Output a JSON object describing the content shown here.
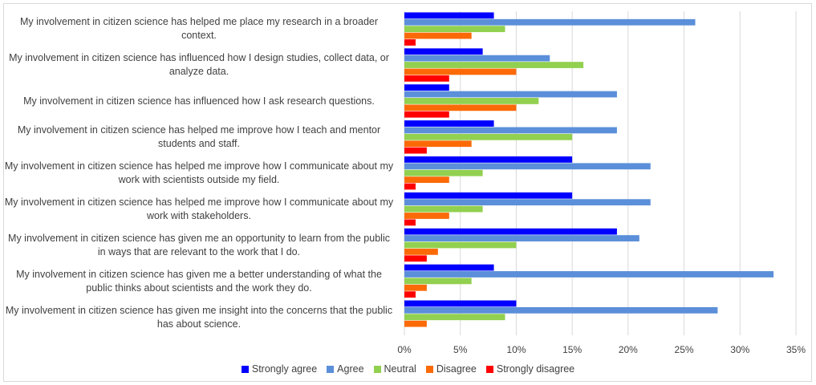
{
  "chart_data": {
    "type": "bar",
    "orientation": "horizontal",
    "categories": [
      "My involvement in citizen science has helped me place my research in a broader context.",
      "My involvement in citizen science has influenced how I design studies, collect data, or analyze data.",
      "My involvement in citizen science has influenced how I ask research questions.",
      "My involvement in citizen science has helped me improve how I teach and mentor students and staff.",
      "My involvement in citizen science has helped me improve how I communicate about my work with scientists outside my field.",
      "My involvement in citizen science has helped me improve how I communicate about my work with stakeholders.",
      "My involvement in citizen science has given me an opportunity to learn from the public in ways that are relevant to the work that I do.",
      "My involvement in citizen science has given me a better understanding of what the public thinks about scientists and the work they do.",
      "My involvement in citizen science has given me insight into the concerns that the public has about science."
    ],
    "series": [
      {
        "name": "Strongly agree",
        "color": "#0000ff",
        "values": [
          8,
          7,
          4,
          8,
          15,
          15,
          19,
          8,
          10
        ]
      },
      {
        "name": "Agree",
        "color": "#5b8fd9",
        "values": [
          26,
          13,
          19,
          19,
          22,
          22,
          21,
          33,
          28
        ]
      },
      {
        "name": "Neutral",
        "color": "#92d050",
        "values": [
          9,
          16,
          12,
          15,
          7,
          7,
          10,
          6,
          9
        ]
      },
      {
        "name": "Disagree",
        "color": "#fb6a07",
        "values": [
          6,
          10,
          10,
          6,
          4,
          4,
          3,
          2,
          2
        ]
      },
      {
        "name": "Strongly disagree",
        "color": "#ff0000",
        "values": [
          1,
          4,
          4,
          2,
          1,
          1,
          2,
          1,
          0
        ]
      }
    ],
    "xticks": [
      "0%",
      "5%",
      "10%",
      "15%",
      "20%",
      "25%",
      "30%",
      "35%"
    ],
    "xlim": [
      0,
      35
    ],
    "grid": true,
    "legend_position": "bottom"
  }
}
